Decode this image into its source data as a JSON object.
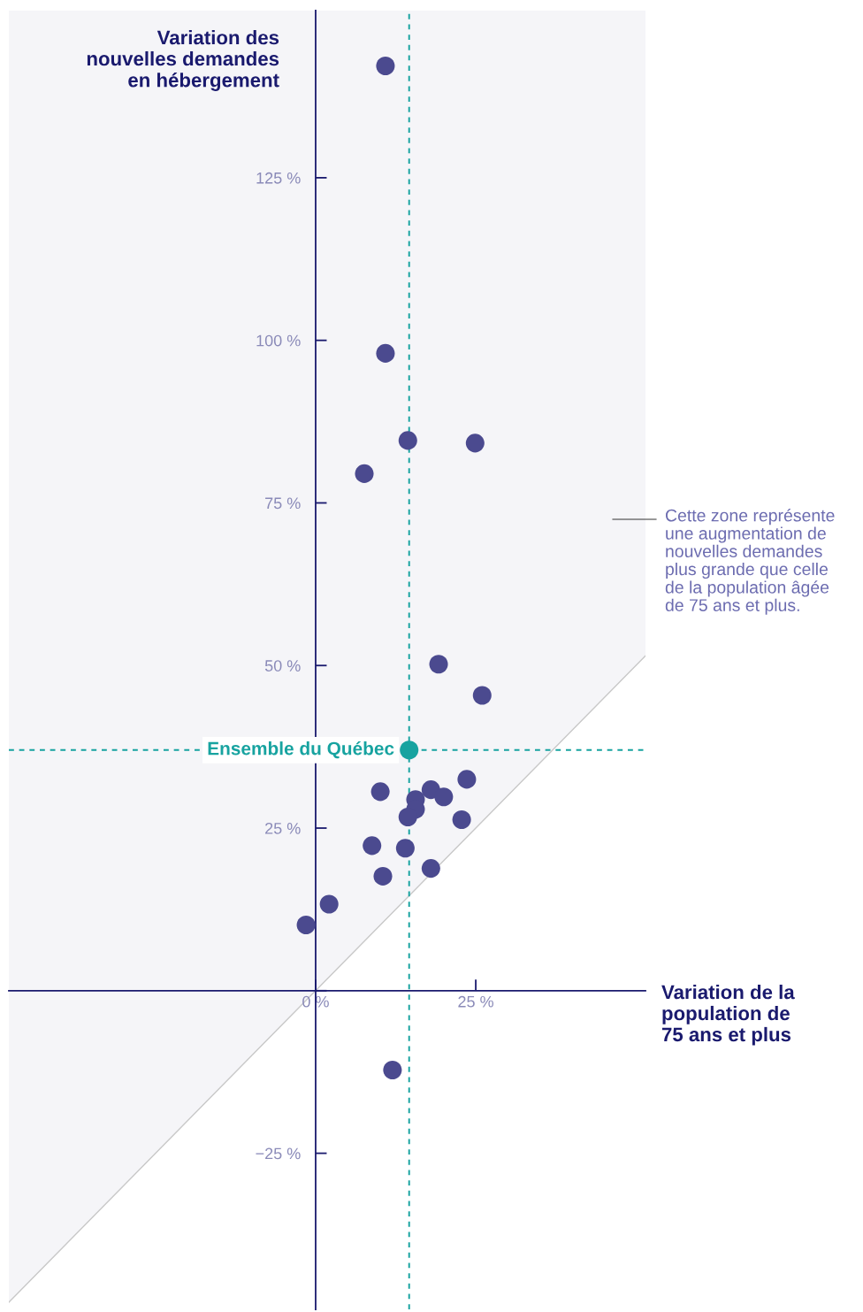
{
  "chart_data": {
    "type": "scatter",
    "ylabel": "Variation des\nnouvelles demandes\nen hébergement",
    "xlabel": "Variation de la\npopulation de\n75 ans et plus",
    "xlim": [
      -47.9,
      51.5
    ],
    "ylim": [
      -49.0,
      150.7
    ],
    "xticks": [
      {
        "value": 0,
        "label": "0 %"
      },
      {
        "value": 25,
        "label": "25 %"
      }
    ],
    "yticks": [
      {
        "value": -25,
        "label": "−25 %"
      },
      {
        "value": 0,
        "label": null
      },
      {
        "value": 25,
        "label": "25 %"
      },
      {
        "value": 50,
        "label": "50 %"
      },
      {
        "value": 75,
        "label": "75 %"
      },
      {
        "value": 100,
        "label": "100 %"
      },
      {
        "value": 125,
        "label": "125 %"
      }
    ],
    "grid": false,
    "legend": false,
    "marker": "circle",
    "series": [
      {
        "color": "#4b4a8f",
        "x": [
          10.9,
          10.9,
          14.4,
          24.9,
          7.6,
          19.2,
          26.0,
          23.6,
          10.1,
          18.0,
          15.6,
          20.0,
          15.6,
          14.4,
          22.8,
          8.8,
          14.0,
          18.0,
          10.5,
          2.1,
          -1.5,
          12.0
        ],
        "values": [
          142.2,
          98.0,
          84.6,
          84.2,
          79.5,
          50.2,
          45.4,
          32.5,
          30.6,
          30.9,
          29.4,
          29.8,
          27.9,
          26.7,
          26.3,
          22.3,
          21.9,
          18.8,
          17.6,
          13.3,
          10.1,
          -12.2
        ]
      },
      {
        "name": "Ensemble du Québec",
        "color": "#17a3a0",
        "x": [
          14.6
        ],
        "values": [
          37.0
        ]
      },
      {
        "type": "line",
        "marker": "none",
        "color": "#c8c8c8",
        "x": [
          -47.9,
          51.5
        ],
        "values": [
          -47.9,
          51.5
        ],
        "lower": [
          -47.9,
          51.5
        ],
        "upper": [
          150.7,
          150.7
        ]
      }
    ],
    "ref_lines": [
      {
        "axis": "x",
        "value": 14.6,
        "color": "#17a3a0",
        "line_style": "dashed"
      },
      {
        "axis": "y",
        "value": 37.0,
        "color": "#17a3a0",
        "line_style": "dashed"
      }
    ],
    "annotations": [
      "Cette zone représente\nune augmentation de\nnouvelles demandes\nplus grande que celle\nde la population âgée\nde 75 ans et plus."
    ]
  }
}
